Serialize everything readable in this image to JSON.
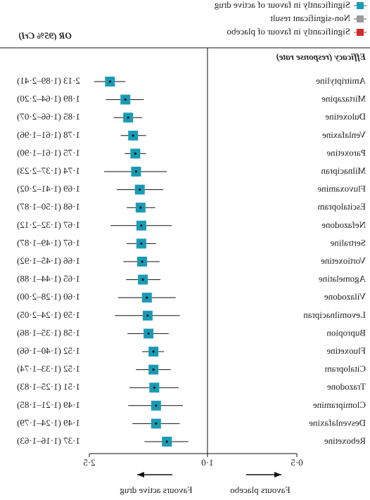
{
  "chart_data": {
    "type": "forest",
    "header": "Efficacy (response rate)",
    "estimate_header": "OR (95% CrI)",
    "x_log": true,
    "xlim": [
      0.5,
      2.5
    ],
    "xticks": [
      {
        "value": 0.5,
        "label": "0·5"
      },
      {
        "value": 1.0,
        "label": "1·0"
      },
      {
        "value": 2.5,
        "label": "2·5"
      }
    ],
    "null_value": 1,
    "favours_left": "Favours placebo",
    "favours_right": "Favours active drug",
    "legend": [
      {
        "name": "Significantly in favour of active drug",
        "color": "#1a9bb5"
      },
      {
        "name": "Non-significant result",
        "color": "#9a9a9a"
      },
      {
        "name": "Significantly in favour of placebo",
        "color": "#d62a2a"
      }
    ],
    "color": "#1a9bb5",
    "categories": [
      "Amitriptyline",
      "Mirtazapine",
      "Duloxetine",
      "Venlafaxine",
      "Paroxetine",
      "Milnacipran",
      "Fluvoxamine",
      "Escitalopram",
      "Nefazodone",
      "Sertraline",
      "Vortioxetine",
      "Agomelatine",
      "Vilazodone",
      "Levomilnacipran",
      "Bupropion",
      "Fluoxetine",
      "Citalopram",
      "Trazodone",
      "Clomipramine",
      "Desvenlafaxine",
      "Reboxetine"
    ],
    "values": [
      2.13,
      1.89,
      1.85,
      1.78,
      1.75,
      1.74,
      1.69,
      1.68,
      1.67,
      1.67,
      1.66,
      1.65,
      1.6,
      1.59,
      1.58,
      1.52,
      1.52,
      1.51,
      1.49,
      1.49,
      1.37
    ],
    "lower": [
      1.89,
      1.64,
      1.66,
      1.61,
      1.61,
      1.37,
      1.41,
      1.5,
      1.32,
      1.49,
      1.45,
      1.44,
      1.28,
      1.24,
      1.35,
      1.4,
      1.33,
      1.25,
      1.21,
      1.24,
      1.16
    ],
    "upper": [
      2.41,
      2.2,
      2.07,
      1.96,
      1.9,
      2.23,
      2.02,
      1.87,
      2.12,
      1.87,
      1.92,
      1.88,
      2.0,
      2.05,
      1.86,
      1.66,
      1.74,
      1.83,
      1.85,
      1.79,
      1.63
    ],
    "value_labels": [
      "2·13 (1·89–2·41)",
      "1·89 (1·64–2·20)",
      "1·85 (1·66–2·07)",
      "1·78 (1·61–1·96)",
      "1·75 (1·61–1·90)",
      "1·74 (1·37–2·23)",
      "1·69 (1·41–2·02)",
      "1·68 (1·50–1·87)",
      "1·67 (1·32–2·12)",
      "1·67 (1·49–1·87)",
      "1·66 (1·45–1·92)",
      "1·65 (1·44–1·88)",
      "1·60 (1·28–2·00)",
      "1·59 (1·24–2·05)",
      "1·58 (1·35–1·86)",
      "1·52 (1·40–1·66)",
      "1·52 (1·33–1·74)",
      "1·51 (1·25–1·83)",
      "1·49 (1·21–1·85)",
      "1·49 (1·24–1·79)",
      "1·37 (1·16–1·63)"
    ]
  }
}
